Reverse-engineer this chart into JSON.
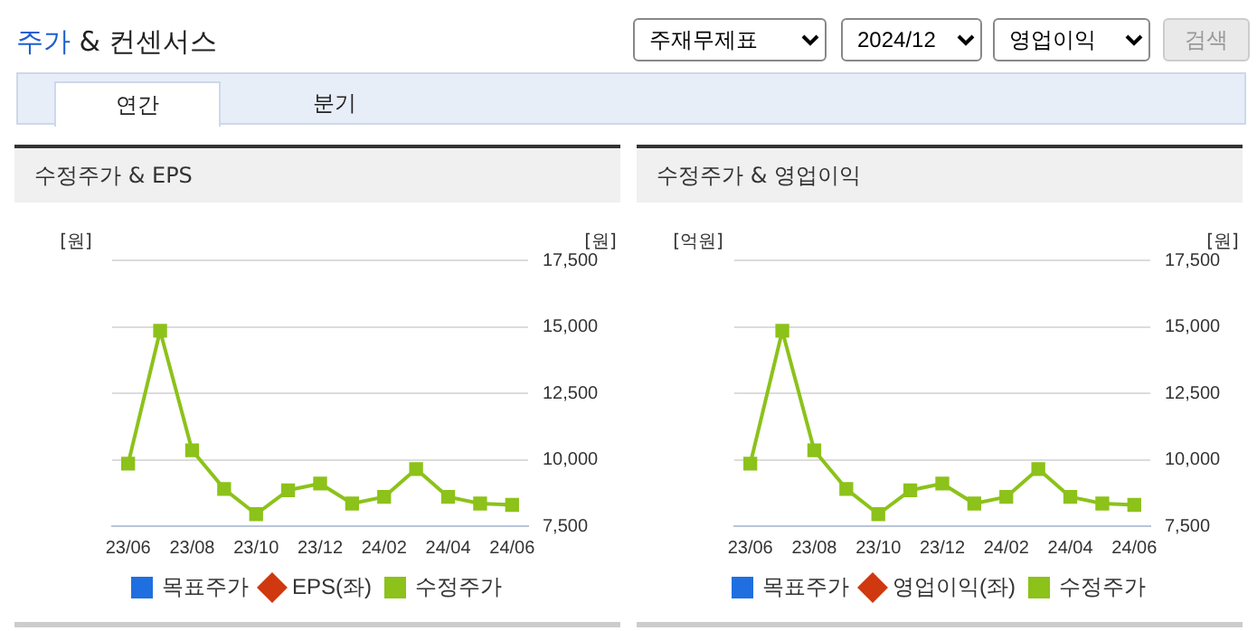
{
  "chart_data": [
    {
      "type": "other",
      "title": "주가 & 컨센서스",
      "annotations": [
        "주재무제표",
        "2024/12",
        "영업이익",
        "검색",
        "연간",
        "분기"
      ]
    },
    {
      "type": "line",
      "title": "수정주가 & EPS",
      "ylabel": "[원]",
      "y2label": "[원]",
      "categories": [
        "23/06",
        null,
        "23/08",
        null,
        "23/10",
        null,
        "23/12",
        null,
        "24/02",
        null,
        "24/04",
        null,
        "24/06"
      ],
      "y2lim": [
        7500,
        17500
      ],
      "y2ticks": [
        {
          "value": 7500,
          "label": "7,500"
        },
        {
          "value": 10000,
          "label": "10,000"
        },
        {
          "value": 12500,
          "label": "12,500"
        },
        {
          "value": 15000,
          "label": "15,000"
        },
        {
          "value": 17500,
          "label": "17,500"
        }
      ],
      "grid": "y",
      "legend": "bottom",
      "series": [
        {
          "name": "목표주가",
          "type": "bar",
          "color": "#1f6fe0",
          "values": [
            null,
            null,
            null,
            null,
            null,
            null,
            null,
            null,
            null,
            null,
            null,
            null,
            null
          ]
        },
        {
          "name": "EPS(좌)",
          "color": "#d0380f",
          "marker": "diamond",
          "values": [
            null,
            null,
            null,
            null,
            null,
            null,
            null,
            null,
            null,
            null,
            null,
            null,
            null
          ]
        },
        {
          "name": "수정주가",
          "color": "#8cc21a",
          "marker": "square",
          "axis": "y2",
          "values": [
            9850,
            14850,
            10350,
            8900,
            7950,
            8850,
            9100,
            8350,
            8600,
            9650,
            8600,
            8350,
            8300
          ]
        }
      ]
    },
    {
      "type": "line",
      "title": "수정주가 & 영업이익",
      "ylabel": "[억원]",
      "y2label": "[원]",
      "categories": [
        "23/06",
        null,
        "23/08",
        null,
        "23/10",
        null,
        "23/12",
        null,
        "24/02",
        null,
        "24/04",
        null,
        "24/06"
      ],
      "y2lim": [
        7500,
        17500
      ],
      "y2ticks": [
        {
          "value": 7500,
          "label": "7,500"
        },
        {
          "value": 10000,
          "label": "10,000"
        },
        {
          "value": 12500,
          "label": "12,500"
        },
        {
          "value": 15000,
          "label": "15,000"
        },
        {
          "value": 17500,
          "label": "17,500"
        }
      ],
      "grid": "y",
      "legend": "bottom",
      "series": [
        {
          "name": "목표주가",
          "type": "bar",
          "color": "#1f6fe0",
          "values": [
            null,
            null,
            null,
            null,
            null,
            null,
            null,
            null,
            null,
            null,
            null,
            null,
            null
          ]
        },
        {
          "name": "영업이익(좌)",
          "color": "#d0380f",
          "marker": "diamond",
          "values": [
            null,
            null,
            null,
            null,
            null,
            null,
            null,
            null,
            null,
            null,
            null,
            null,
            null
          ]
        },
        {
          "name": "수정주가",
          "color": "#8cc21a",
          "marker": "square",
          "axis": "y2",
          "values": [
            9850,
            14850,
            10350,
            8900,
            7950,
            8850,
            9100,
            8350,
            8600,
            9650,
            8600,
            8350,
            8300
          ]
        }
      ]
    }
  ]
}
